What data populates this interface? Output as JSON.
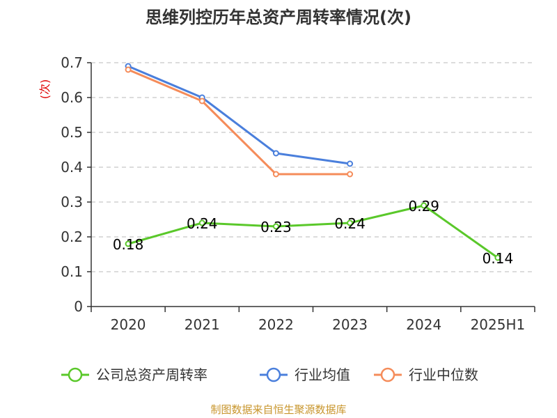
{
  "chart_data": {
    "type": "line",
    "title": "思维列控历年总资产周转率情况(次)",
    "ylabel": "(次)",
    "xlabel": "",
    "categories": [
      "2020",
      "2021",
      "2022",
      "2023",
      "2024",
      "2025H1"
    ],
    "ylim": [
      0,
      0.7
    ],
    "yticks": [
      "0",
      "0.1",
      "0.2",
      "0.3",
      "0.4",
      "0.5",
      "0.6",
      "0.7"
    ],
    "grid": true,
    "legend_position": "bottom",
    "series": [
      {
        "name": "公司总资产周转率",
        "color": "#5ac82a",
        "values": [
          0.18,
          0.24,
          0.23,
          0.24,
          0.29,
          0.14
        ],
        "labels": [
          "0.18",
          "0.24",
          "0.23",
          "0.24",
          "0.29",
          "0.14"
        ]
      },
      {
        "name": "行业均值",
        "color": "#4a7fdc",
        "values": [
          0.69,
          0.6,
          0.44,
          0.41,
          null,
          null
        ]
      },
      {
        "name": "行业中位数",
        "color": "#f58c5a",
        "values": [
          0.68,
          0.59,
          0.38,
          0.38,
          null,
          null
        ]
      }
    ]
  },
  "source": "制图数据来自恒生聚源数据库"
}
